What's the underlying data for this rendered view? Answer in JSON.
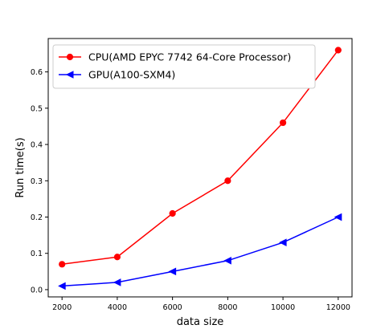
{
  "chart_data": {
    "type": "line",
    "title": "",
    "xlabel": "data size",
    "ylabel": "Run time(s)",
    "x": [
      2000,
      4000,
      6000,
      8000,
      10000,
      12000
    ],
    "xticks": [
      "2000",
      "4000",
      "6000",
      "8000",
      "10000",
      "12000"
    ],
    "yticks": [
      "0.0",
      "0.1",
      "0.2",
      "0.3",
      "0.4",
      "0.5",
      "0.6"
    ],
    "xlim": [
      1500,
      12500
    ],
    "ylim": [
      -0.02,
      0.692
    ],
    "grid": false,
    "legend_position": "upper-left",
    "series": [
      {
        "name": "CPU(AMD EPYC 7742 64-Core Processor)",
        "color": "#ff0000",
        "marker": "circle",
        "values": [
          0.07,
          0.09,
          0.21,
          0.3,
          0.46,
          0.66
        ]
      },
      {
        "name": "GPU(A100-SXM4)",
        "color": "#0000ff",
        "marker": "triangle-left",
        "values": [
          0.01,
          0.02,
          0.05,
          0.08,
          0.13,
          0.2
        ]
      }
    ]
  }
}
